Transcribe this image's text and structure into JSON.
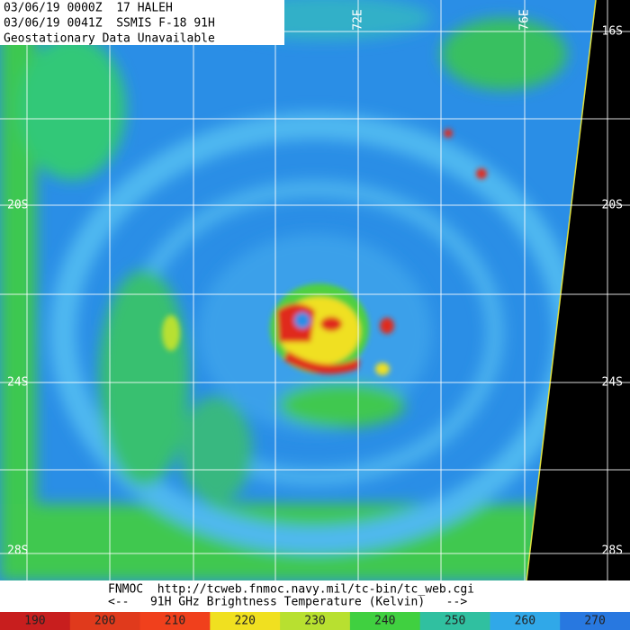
{
  "header": {
    "lines": [
      "03/06/19 0000Z  17 HALEH",
      "03/06/19 0041Z  SSMIS F-18 91H",
      "Geostationary Data Unavailable"
    ]
  },
  "grid": {
    "lon_labels": [
      "72E",
      "76E"
    ],
    "lat_labels": [
      "16S",
      "20S",
      "24S",
      "28S"
    ]
  },
  "footer": {
    "lines": [
      "FNMOC  http://tcweb.fnmoc.navy.mil/tc-bin/tc_web.cgi",
      "<--   91H GHz Brightness Temperature (Kelvin)   -->"
    ]
  },
  "colorbar": {
    "ticks": [
      190,
      200,
      210,
      220,
      230,
      240,
      250,
      260,
      270
    ],
    "colors": [
      "#c81e1e",
      "#e03a1c",
      "#f0401c",
      "#f0e020",
      "#b8e030",
      "#40d040",
      "#30c0a0",
      "#30a8e8",
      "#2878e0"
    ]
  }
}
